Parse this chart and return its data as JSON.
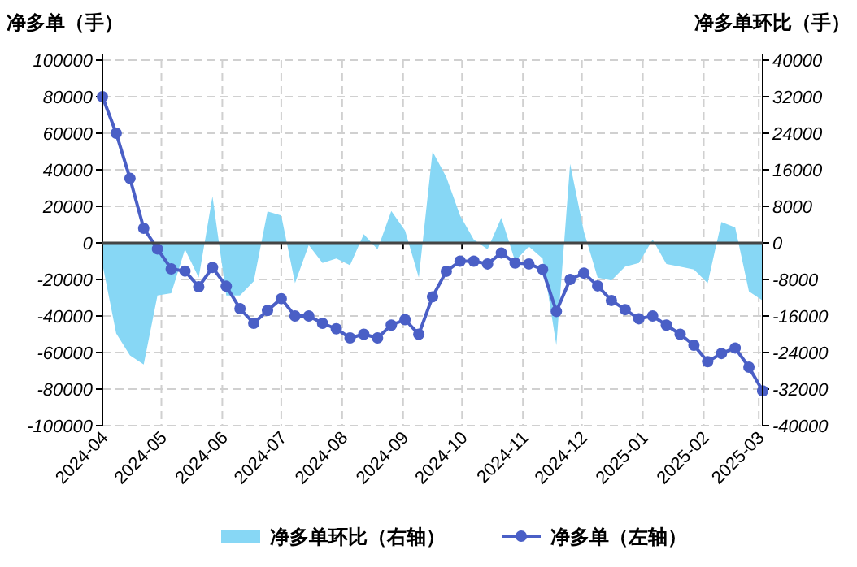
{
  "chart_data": {
    "type": "line",
    "ylabel": "净多单（手）",
    "y2label": "净多单环比（手）",
    "x": [
      "2024-04-01",
      "2024-04-08",
      "2024-04-15",
      "2024-04-22",
      "2024-04-29",
      "2024-05-06",
      "2024-05-13",
      "2024-05-20",
      "2024-05-27",
      "2024-06-03",
      "2024-06-10",
      "2024-06-17",
      "2024-06-24",
      "2024-07-01",
      "2024-07-08",
      "2024-07-15",
      "2024-07-22",
      "2024-07-29",
      "2024-08-05",
      "2024-08-12",
      "2024-08-19",
      "2024-08-26",
      "2024-09-02",
      "2024-09-09",
      "2024-09-16",
      "2024-09-23",
      "2024-09-30",
      "2024-10-07",
      "2024-10-14",
      "2024-10-21",
      "2024-10-28",
      "2024-11-04",
      "2024-11-11",
      "2024-11-18",
      "2024-11-25",
      "2024-12-02",
      "2024-12-09",
      "2024-12-16",
      "2024-12-23",
      "2024-12-30",
      "2025-01-06",
      "2025-01-13",
      "2025-01-20",
      "2025-01-27",
      "2025-02-03",
      "2025-02-10",
      "2025-02-17",
      "2025-02-24",
      "2025-03-03"
    ],
    "series": [
      {
        "name": "净多单环比（右轴）",
        "type": "area",
        "axis": "y2",
        "color": "#87d7f5",
        "values": [
          -4600,
          -19800,
          -24600,
          -26600,
          -11500,
          -11000,
          -1400,
          -7600,
          10200,
          -11500,
          -11500,
          -8400,
          6900,
          6000,
          -8800,
          -500,
          -4400,
          -3400,
          -4900,
          1900,
          -1400,
          7000,
          2700,
          -7600,
          20000,
          14400,
          6000,
          700,
          -1400,
          5500,
          -4000,
          -800,
          -3400,
          -22400,
          17300,
          2500,
          -7600,
          -8200,
          -5200,
          -4400,
          700,
          -4600,
          -5200,
          -5800,
          -8800,
          4600,
          3400,
          -10600,
          -12600
        ]
      },
      {
        "name": "净多单（左轴）",
        "color": "#4a5fc6",
        "marker": "circle",
        "values": [
          80000,
          60000,
          35300,
          8000,
          -3300,
          -14200,
          -15400,
          -24000,
          -13400,
          -23700,
          -36000,
          -44000,
          -37000,
          -30500,
          -40000,
          -40000,
          -44000,
          -47000,
          -52000,
          -50000,
          -52000,
          -45000,
          -42000,
          -50000,
          -29500,
          -15500,
          -10000,
          -10000,
          -11500,
          -5500,
          -11000,
          -11500,
          -14500,
          -37500,
          -20000,
          -16500,
          -23500,
          -31500,
          -36500,
          -41500,
          -40000,
          -45000,
          -50000,
          -56000,
          -65000,
          -60500,
          -57500,
          -68000,
          -81000
        ]
      }
    ],
    "xlim": [
      "2024-04-01",
      "2025-03-03"
    ],
    "xticks": [
      {
        "value": "2024-04-01",
        "label": "2024-04"
      },
      {
        "value": "2024-05-01",
        "label": "2024-05"
      },
      {
        "value": "2024-06-01",
        "label": "2024-06"
      },
      {
        "value": "2024-07-01",
        "label": "2024-07"
      },
      {
        "value": "2024-08-01",
        "label": "2024-08"
      },
      {
        "value": "2024-09-01",
        "label": "2024-09"
      },
      {
        "value": "2024-10-01",
        "label": "2024-10"
      },
      {
        "value": "2024-11-01",
        "label": "2024-11"
      },
      {
        "value": "2024-12-01",
        "label": "2024-12"
      },
      {
        "value": "2025-01-01",
        "label": "2025-01"
      },
      {
        "value": "2025-02-01",
        "label": "2025-02"
      },
      {
        "value": "2025-03-01",
        "label": "2025-03"
      }
    ],
    "ylim": [
      -100000,
      100000
    ],
    "yticks": [
      -100000,
      -80000,
      -60000,
      -40000,
      -20000,
      0,
      20000,
      40000,
      60000,
      80000,
      100000
    ],
    "y2lim": [
      -40000,
      40000
    ],
    "y2ticks": [
      -40000,
      -32000,
      -24000,
      -16000,
      -8000,
      0,
      8000,
      16000,
      24000,
      32000,
      40000
    ],
    "grid": true,
    "legend": "bottom",
    "line_style": "solid"
  }
}
